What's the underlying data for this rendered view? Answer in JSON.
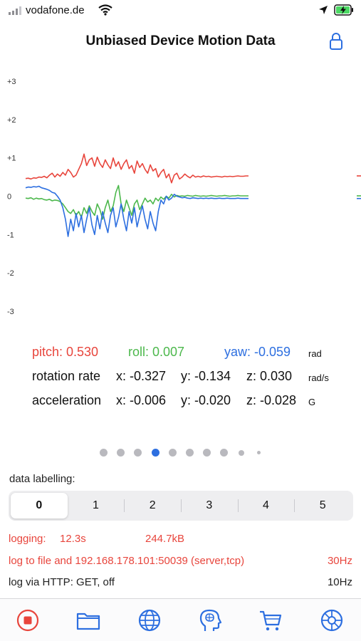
{
  "status": {
    "carrier": "vodafone.de"
  },
  "nav": {
    "title": "Unbiased Device Motion Data"
  },
  "chart_data": {
    "type": "line",
    "yticks": [
      "+3",
      "+2",
      "+1",
      "0",
      "-1",
      "-2",
      "-3"
    ],
    "ylim": [
      -3,
      3
    ],
    "series": [
      {
        "name": "pitch",
        "color": "#e8453c",
        "values": [
          0.46,
          0.47,
          0.45,
          0.48,
          0.47,
          0.5,
          0.49,
          0.52,
          0.48,
          0.55,
          0.6,
          0.5,
          0.58,
          0.52,
          0.62,
          0.55,
          0.7,
          0.62,
          0.5,
          0.55,
          0.7,
          0.85,
          1.1,
          0.8,
          0.95,
          1.0,
          0.78,
          1.02,
          0.85,
          0.75,
          0.95,
          0.82,
          0.72,
          1.0,
          0.78,
          0.9,
          0.7,
          0.85,
          0.95,
          0.72,
          0.8,
          0.6,
          0.92,
          0.75,
          0.85,
          0.7,
          0.6,
          0.82,
          0.66,
          0.72,
          0.5,
          0.62,
          0.7,
          0.48,
          0.58,
          0.35,
          0.55,
          0.6,
          0.45,
          0.5,
          0.58,
          0.52,
          0.48,
          0.55,
          0.5,
          0.52,
          0.5,
          0.53,
          0.51,
          0.52,
          0.5,
          0.51,
          0.52,
          0.51,
          0.5,
          0.52,
          0.51,
          0.52,
          0.51,
          0.52,
          0.53,
          0.52,
          0.52,
          0.53,
          0.53
        ]
      },
      {
        "name": "roll",
        "color": "#4cb84c",
        "values": [
          -0.05,
          -0.06,
          -0.04,
          -0.08,
          -0.05,
          -0.07,
          -0.06,
          -0.09,
          -0.1,
          -0.08,
          -0.12,
          -0.1,
          -0.11,
          -0.14,
          -0.2,
          -0.3,
          -0.4,
          -0.45,
          -0.35,
          -0.5,
          -0.4,
          -0.55,
          -0.3,
          -0.45,
          -0.25,
          -0.4,
          -0.5,
          -0.2,
          -0.35,
          -0.6,
          -0.3,
          -0.1,
          -0.4,
          -0.25,
          0.1,
          0.28,
          -0.2,
          -0.4,
          -0.1,
          -0.3,
          -0.5,
          -0.2,
          -0.1,
          -0.35,
          -0.2,
          -0.05,
          -0.15,
          -0.1,
          -0.2,
          -0.05,
          -0.12,
          -0.02,
          -0.08,
          0.0,
          -0.05,
          0.05,
          -0.02,
          0.02,
          0.0,
          0.01,
          0.0,
          0.02,
          0.01,
          0.0,
          0.02,
          0.01,
          0.0,
          0.01,
          0.0,
          0.01,
          0.02,
          0.01,
          0.0,
          0.01,
          0.01,
          0.02,
          0.01,
          0.0,
          0.01,
          0.01,
          0.02,
          0.01,
          0.01,
          0.01,
          0.01
        ]
      },
      {
        "name": "yaw",
        "color": "#2d6fe0",
        "values": [
          0.22,
          0.24,
          0.23,
          0.25,
          0.24,
          0.26,
          0.22,
          0.2,
          0.18,
          0.15,
          0.1,
          0.08,
          0.0,
          -0.1,
          -0.3,
          -0.6,
          -1.05,
          -0.6,
          -0.9,
          -0.45,
          -0.8,
          -0.5,
          -0.95,
          -0.6,
          -0.3,
          -0.75,
          -1.0,
          -0.5,
          -0.85,
          -0.4,
          -0.7,
          -0.95,
          -0.5,
          -0.3,
          -0.8,
          -0.55,
          -0.2,
          -0.6,
          -0.9,
          -0.4,
          -0.7,
          -0.3,
          -0.8,
          -0.5,
          -0.25,
          -0.6,
          -0.85,
          -0.4,
          -0.7,
          -0.9,
          -0.4,
          -0.1,
          -0.2,
          0.0,
          -0.1,
          -0.05,
          0.05,
          0.0,
          -0.02,
          -0.04,
          -0.03,
          -0.05,
          -0.06,
          -0.04,
          -0.05,
          -0.06,
          -0.05,
          -0.06,
          -0.05,
          -0.06,
          -0.05,
          -0.06,
          -0.06,
          -0.05,
          -0.06,
          -0.06,
          -0.05,
          -0.06,
          -0.06,
          -0.06,
          -0.05,
          -0.06,
          -0.06,
          -0.06,
          -0.06
        ]
      }
    ]
  },
  "readouts": {
    "attitude": {
      "pitch": "pitch: 0.530",
      "roll": "roll: 0.007",
      "yaw": "yaw: -0.059",
      "unit": "rad"
    },
    "rotation": {
      "label": "rotation rate",
      "x": "x: -0.327",
      "y": "y: -0.134",
      "z": "z: 0.030",
      "unit": "rad/s"
    },
    "acceleration": {
      "label": "acceleration",
      "x": "x: -0.006",
      "y": "y: -0.020",
      "z": "z: -0.028",
      "unit": "G"
    }
  },
  "page_control": {
    "count": 10,
    "active_index": 3
  },
  "labelling": {
    "title": "data labelling:",
    "segments": [
      "0",
      "1",
      "2",
      "3",
      "4",
      "5"
    ],
    "selected": 0
  },
  "logging": {
    "time_label": "logging:",
    "time_value": "12.3s",
    "size": "244.7kB",
    "target": "log to file and 192.168.178.101:50039 (server,tcp)",
    "target_rate": "30Hz",
    "http": "log via HTTP: GET, off",
    "http_rate": "10Hz"
  },
  "tabs": [
    {
      "icon": "record-stop-icon"
    },
    {
      "icon": "folder-icon"
    },
    {
      "icon": "globe-icon"
    },
    {
      "icon": "head-brain-icon"
    },
    {
      "icon": "cart-icon"
    },
    {
      "icon": "settings-gear-icon"
    }
  ],
  "colors": {
    "accent": "#2d6fe0",
    "pitch": "#e8453c",
    "roll": "#4cb84c",
    "yaw": "#2d6fe0",
    "logging": "#e8453c"
  }
}
